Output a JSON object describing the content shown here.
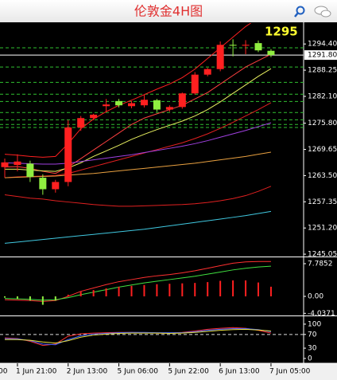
{
  "header": {
    "title": "伦敦金4H图"
  },
  "chart_data": [
    {
      "type": "candlestick",
      "annotation": "1295",
      "categories": [
        null,
        "1 Jun 21:00",
        null,
        null,
        null,
        "2 Jun 13:00",
        null,
        null,
        null,
        "5 Jun 06:00",
        null,
        null,
        null,
        "5 Jun 22:00",
        null,
        null,
        null,
        "6 Jun 13:00",
        null,
        null,
        null,
        "7 Jun 05:00"
      ],
      "x_cut_label": "00",
      "open": [
        1265.5,
        1266.0,
        1266.3,
        1263.0,
        1260.3,
        1262.0,
        1274.8,
        1277.0,
        1279.8,
        1281.0,
        1279.8,
        1280.0,
        1281.2,
        1279.0,
        1279.6,
        1282.8,
        1287.2,
        1288.5,
        1294.2,
        1294.0,
        1294.6,
        1292.8
      ],
      "high": [
        1267.5,
        1268.5,
        1267.0,
        1263.8,
        1262.5,
        1276.5,
        1277.5,
        1278.0,
        1281.5,
        1281.5,
        1281.0,
        1282.5,
        1281.5,
        1280.0,
        1283.0,
        1287.8,
        1288.8,
        1295.0,
        1295.5,
        1295.3,
        1295.2,
        1293.2
      ],
      "low": [
        1263.0,
        1264.5,
        1262.0,
        1259.0,
        1259.5,
        1261.0,
        1274.0,
        1276.5,
        1278.5,
        1279.5,
        1279.3,
        1279.5,
        1278.5,
        1278.5,
        1279.2,
        1282.5,
        1286.8,
        1288.0,
        1291.5,
        1292.0,
        1292.5,
        1291.3
      ],
      "close": [
        1266.6,
        1266.8,
        1263.2,
        1260.3,
        1262.0,
        1274.8,
        1277.0,
        1277.8,
        1280.2,
        1280.0,
        1280.5,
        1281.3,
        1279.0,
        1279.6,
        1282.8,
        1287.2,
        1288.5,
        1294.2,
        1294.0,
        1294.2,
        1292.9,
        1291.8
      ],
      "up_color": "#ff2020",
      "down_color": "#90ee40",
      "series": [
        {
          "color": "#ff2020",
          "values": [
            1268.5,
            1268.3,
            1268,
            1267.8,
            1268,
            1271,
            1274.5,
            1276.8,
            1278.5,
            1280,
            1281.2,
            1282.5,
            1283.8,
            1285,
            1286.5,
            1288.5,
            1291,
            1293.5,
            1296,
            1298.5,
            1300.5,
            1302
          ]
        },
        {
          "color": "#ff4040",
          "values": [
            1265.5,
            1265.6,
            1265.2,
            1264.5,
            1264,
            1265.5,
            1267.5,
            1269.5,
            1271.5,
            1273.5,
            1275.5,
            1277,
            1278,
            1279,
            1280,
            1281.5,
            1283,
            1285,
            1287,
            1289,
            1290.5,
            1292
          ]
        },
        {
          "color": "#e8f060",
          "values": [
            1265,
            1265,
            1264.8,
            1264.6,
            1264.5,
            1265.3,
            1266.5,
            1268,
            1269.3,
            1270.6,
            1272,
            1273.2,
            1274.3,
            1275.3,
            1276.3,
            1277.5,
            1279,
            1280.8,
            1282.8,
            1284.8,
            1286.8,
            1288.6
          ]
        },
        {
          "color": "#e02020",
          "values": [
            1263,
            1263.2,
            1263.3,
            1263.4,
            1263.5,
            1264,
            1264.8,
            1265.6,
            1266.4,
            1267.2,
            1268,
            1268.8,
            1269.6,
            1270.4,
            1271.2,
            1272.2,
            1273.3,
            1274.6,
            1276,
            1277.5,
            1279,
            1280.6
          ]
        },
        {
          "color": "#a040e0",
          "values": [
            1266.5,
            1266.4,
            1266.3,
            1266.2,
            1266.2,
            1266.4,
            1266.8,
            1267.2,
            1267.6,
            1268,
            1268.4,
            1268.9,
            1269.4,
            1269.9,
            1270.4,
            1271,
            1271.7,
            1272.5,
            1273.3,
            1274.1,
            1275,
            1275.9
          ]
        },
        {
          "color": "#e8a040",
          "values": [
            1263,
            1263.1,
            1263.2,
            1263.3,
            1263.4,
            1263.6,
            1263.8,
            1264,
            1264.3,
            1264.6,
            1264.9,
            1265.2,
            1265.5,
            1265.8,
            1266.1,
            1266.4,
            1266.8,
            1267.2,
            1267.6,
            1268,
            1268.5,
            1269
          ]
        },
        {
          "color": "#e02020",
          "values": [
            1259,
            1258.6,
            1258.2,
            1258,
            1257.6,
            1257.3,
            1257,
            1256.7,
            1256.5,
            1256.3,
            1256.3,
            1256.4,
            1256.5,
            1256.6,
            1256.7,
            1256.9,
            1257.2,
            1257.6,
            1258.1,
            1258.8,
            1259.8,
            1261
          ]
        },
        {
          "color": "#40c8e0",
          "values": [
            1247.6,
            1247.9,
            1248.2,
            1248.5,
            1248.8,
            1249.1,
            1249.4,
            1249.7,
            1250,
            1250.3,
            1250.6,
            1250.9,
            1251.3,
            1251.7,
            1252.1,
            1252.5,
            1252.9,
            1253.3,
            1253.7,
            1254.1,
            1254.6,
            1255.1
          ]
        }
      ],
      "levels": [
        1293.5,
        1289,
        1285.4,
        1282.6,
        1280.9,
        1278.3,
        1276.6,
        1275.5,
        1274.8
      ],
      "level_color": "#30c030",
      "current_price": {
        "value": 1291.8,
        "label": "1291.80"
      },
      "ylim": [
        1244.5,
        1299.3
      ],
      "yticks": [
        {
          "value": 1294.4,
          "label": "1294.40"
        },
        {
          "value": 1288.25,
          "label": "1288.25"
        },
        {
          "value": 1282.1,
          "label": "1282.10"
        },
        {
          "value": 1275.8,
          "label": "1275.80"
        },
        {
          "value": 1269.65,
          "label": "1269.65"
        },
        {
          "value": 1263.5,
          "label": "1263.50"
        },
        {
          "value": 1257.35,
          "label": "1257.35"
        },
        {
          "value": 1251.2,
          "label": "1251.20"
        },
        {
          "value": 1245.05,
          "label": "1245.05"
        }
      ]
    },
    {
      "type": "bar",
      "values": [
        -0.3,
        -0.6,
        -1.0,
        -2.0,
        -1.0,
        0.4,
        1.1,
        1.5,
        1.9,
        2.3,
        2.5,
        2.7,
        2.9,
        3.0,
        3.1,
        3.2,
        3.4,
        3.7,
        3.8,
        3.8,
        3.3,
        2.3
      ],
      "up_color": "#ff2020",
      "down_color": "#90ee40",
      "series": [
        {
          "color": "#ff3030",
          "values": [
            -0.8,
            -0.9,
            -1.0,
            -1.2,
            -1.0,
            0.0,
            1.2,
            2.0,
            2.8,
            3.5,
            4.0,
            4.5,
            4.9,
            5.2,
            5.6,
            6.1,
            6.7,
            7.3,
            7.9,
            8.2,
            8.3,
            8.3
          ]
        },
        {
          "color": "#40e040",
          "values": [
            -0.5,
            -0.6,
            -0.7,
            -0.9,
            -0.8,
            -0.3,
            0.4,
            1.0,
            1.6,
            2.2,
            2.7,
            3.2,
            3.6,
            4.0,
            4.4,
            4.8,
            5.3,
            5.8,
            6.3,
            6.7,
            7.0,
            7.2
          ]
        }
      ],
      "ylim": [
        -4.55,
        9.3
      ],
      "yticks": [
        {
          "value": 7.7852,
          "label": "7.7852"
        },
        {
          "value": 0,
          "label": "0.00"
        },
        {
          "value": -4.0371,
          "label": "-4.0371"
        }
      ]
    },
    {
      "type": "line",
      "series": [
        {
          "color": "#ff3030",
          "values": [
            60,
            58,
            50,
            38,
            42,
            65,
            72,
            74,
            75,
            76,
            76,
            75,
            74,
            74,
            76,
            80,
            85,
            88,
            90,
            88,
            82,
            74
          ]
        },
        {
          "color": "#4060ff",
          "values": [
            58,
            57,
            52,
            42,
            40,
            55,
            66,
            71,
            73,
            75,
            76,
            76,
            75,
            75,
            75,
            78,
            82,
            85,
            87,
            87,
            84,
            78
          ]
        },
        {
          "color": "#e8e040",
          "values": [
            55,
            55,
            53,
            48,
            45,
            52,
            62,
            68,
            71,
            73,
            74,
            74,
            74,
            73,
            74,
            76,
            79,
            82,
            84,
            85,
            83,
            80
          ]
        }
      ],
      "levels": [
        70
      ],
      "ylim": [
        -14,
        123
      ],
      "yticks": [
        100,
        70,
        30,
        0
      ]
    }
  ]
}
